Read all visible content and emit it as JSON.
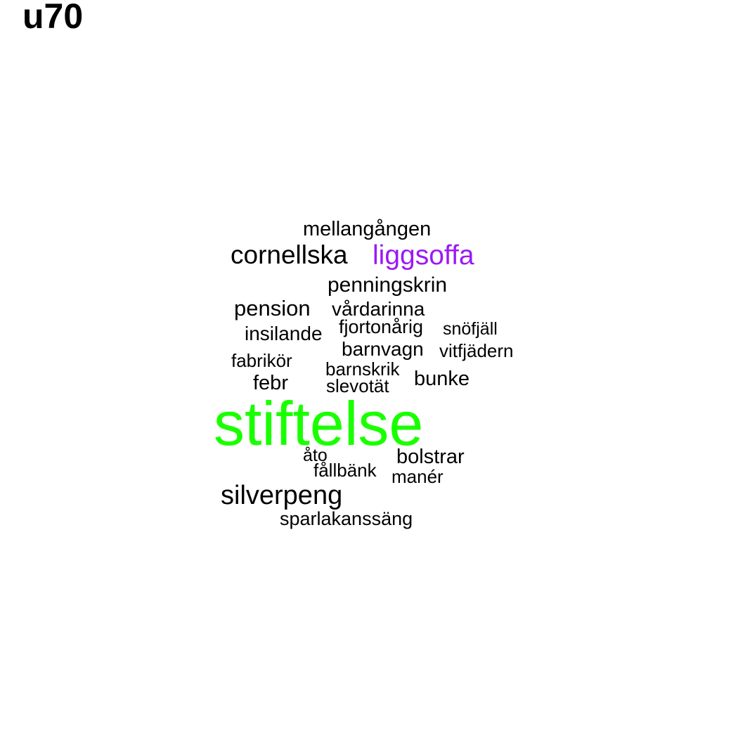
{
  "title": "u70",
  "colors": {
    "default": "#000000",
    "highlight_green": "#1aff00",
    "highlight_purple": "#9b19f5"
  },
  "words": [
    {
      "id": "mellangangen",
      "text": "mellangången",
      "weight": 1
    },
    {
      "id": "cornellska",
      "text": "cornellska",
      "weight": 2
    },
    {
      "id": "liggsoffa",
      "text": "liggsoffa",
      "weight": 3,
      "color": "highlight_purple"
    },
    {
      "id": "penningskrin",
      "text": "penningskrin",
      "weight": 1
    },
    {
      "id": "pension",
      "text": "pension",
      "weight": 1
    },
    {
      "id": "vardarinna",
      "text": "vårdarinna",
      "weight": 1
    },
    {
      "id": "insilande",
      "text": "insilande",
      "weight": 1
    },
    {
      "id": "fjortonarig",
      "text": "fjortonårig",
      "weight": 1
    },
    {
      "id": "snofjall",
      "text": "snöfjäll",
      "weight": 1
    },
    {
      "id": "barnvagn",
      "text": "barnvagn",
      "weight": 1
    },
    {
      "id": "vitfjadern",
      "text": "vitfjädern",
      "weight": 1
    },
    {
      "id": "fabrikor",
      "text": "fabrikör",
      "weight": 1
    },
    {
      "id": "barnskrik",
      "text": "barnskrik",
      "weight": 1
    },
    {
      "id": "febr",
      "text": "febr",
      "weight": 1
    },
    {
      "id": "slevotat",
      "text": "slevotät",
      "weight": 1
    },
    {
      "id": "bunke",
      "text": "bunke",
      "weight": 1
    },
    {
      "id": "stiftelse",
      "text": "stiftelse",
      "weight": 10,
      "color": "highlight_green"
    },
    {
      "id": "ato",
      "text": "åto",
      "weight": 1
    },
    {
      "id": "bolstrar",
      "text": "bolstrar",
      "weight": 1
    },
    {
      "id": "fallbank",
      "text": "fållbänk",
      "weight": 1
    },
    {
      "id": "maner",
      "text": "manér",
      "weight": 1
    },
    {
      "id": "silverpeng",
      "text": "silverpeng",
      "weight": 2
    },
    {
      "id": "sparlakanssang",
      "text": "sparlakanssäng",
      "weight": 1
    }
  ]
}
